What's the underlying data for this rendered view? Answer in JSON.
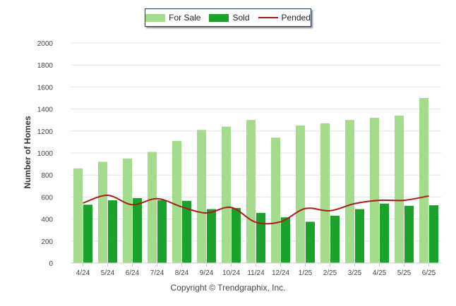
{
  "chart_data": {
    "type": "bar",
    "categories": [
      "4/24",
      "5/24",
      "6/24",
      "7/24",
      "8/24",
      "9/24",
      "10/24",
      "11/24",
      "12/24",
      "1/25",
      "2/25",
      "3/25",
      "4/25",
      "5/25",
      "6/25"
    ],
    "series": [
      {
        "name": "For Sale",
        "type": "bar",
        "color": "#a3dc8a",
        "values": [
          860,
          920,
          950,
          1010,
          1110,
          1210,
          1240,
          1300,
          1140,
          1250,
          1270,
          1300,
          1320,
          1340,
          1500
        ]
      },
      {
        "name": "Sold",
        "type": "bar",
        "color": "#1aa32a",
        "values": [
          530,
          570,
          590,
          570,
          565,
          490,
          500,
          455,
          415,
          375,
          430,
          490,
          540,
          520,
          525
        ]
      },
      {
        "name": "Pended",
        "type": "line",
        "color": "#b01818",
        "values": [
          545,
          615,
          530,
          585,
          510,
          455,
          505,
          370,
          375,
          495,
          475,
          540,
          570,
          570,
          610
        ]
      }
    ],
    "ylabel": "Number of Homes",
    "xlabel": "",
    "ylim": [
      0,
      2000
    ],
    "yticks": [
      0,
      200,
      400,
      600,
      800,
      1000,
      1200,
      1400,
      1600,
      1800,
      2000
    ],
    "grid": true,
    "legend_position": "top-center"
  },
  "credit": "Copyright © Trendgraphix, Inc."
}
